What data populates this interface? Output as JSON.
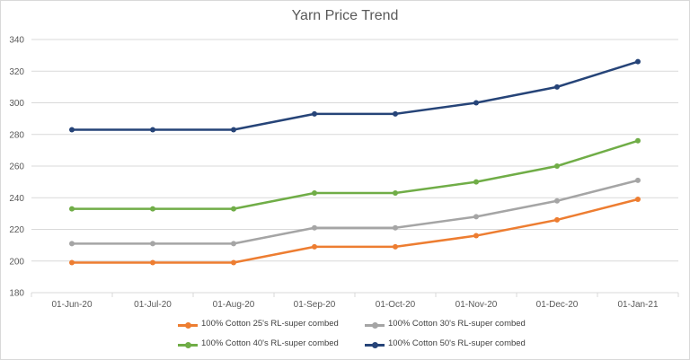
{
  "chart_data": {
    "type": "line",
    "title": "Yarn Price Trend",
    "categories": [
      "01-Jun-20",
      "01-Jul-20",
      "01-Aug-20",
      "01-Sep-20",
      "01-Oct-20",
      "01-Nov-20",
      "01-Dec-20",
      "01-Jan-21"
    ],
    "ylim": [
      180,
      340
    ],
    "yticks": [
      "180",
      "200",
      "220",
      "240",
      "260",
      "280",
      "300",
      "320",
      "340"
    ],
    "grid": true,
    "legend_position": "bottom",
    "series": [
      {
        "name": "100% Cotton 25's RL-super combed",
        "color": "#ed7d31",
        "values": [
          199,
          199,
          199,
          209,
          209,
          216,
          226,
          239
        ]
      },
      {
        "name": "100% Cotton 30's RL-super combed",
        "color": "#a5a5a5",
        "values": [
          211,
          211,
          211,
          221,
          221,
          228,
          238,
          251
        ]
      },
      {
        "name": "100% Cotton 40's RL-super combed",
        "color": "#70ad47",
        "values": [
          233,
          233,
          233,
          243,
          243,
          250,
          260,
          276
        ]
      },
      {
        "name": "100% Cotton 50's RL-super combed",
        "color": "#264478",
        "values": [
          283,
          283,
          283,
          293,
          293,
          300,
          310,
          326
        ]
      }
    ]
  }
}
